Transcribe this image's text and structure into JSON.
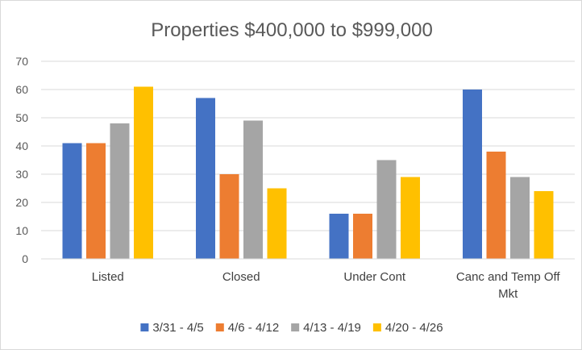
{
  "chart_data": {
    "type": "bar",
    "title": "Properties $400,000 to $999,000",
    "xlabel": "",
    "ylabel": "",
    "ylim": [
      0,
      70
    ],
    "yticks": [
      0,
      10,
      20,
      30,
      40,
      50,
      60,
      70
    ],
    "grid": true,
    "legend_position": "bottom",
    "categories": [
      [
        "Listed"
      ],
      [
        "Closed"
      ],
      [
        "Under Cont"
      ],
      [
        "Canc and Temp Off",
        "Mkt"
      ]
    ],
    "series": [
      {
        "name": "3/31 - 4/5",
        "color": "#4472c4",
        "values": [
          41,
          57,
          16,
          60
        ]
      },
      {
        "name": "4/6 - 4/12",
        "color": "#ed7d31",
        "values": [
          41,
          30,
          16,
          38
        ]
      },
      {
        "name": "4/13 - 4/19",
        "color": "#a5a5a5",
        "values": [
          48,
          49,
          35,
          29
        ]
      },
      {
        "name": "4/20 - 4/26",
        "color": "#ffc000",
        "values": [
          61,
          25,
          29,
          24
        ]
      }
    ]
  }
}
